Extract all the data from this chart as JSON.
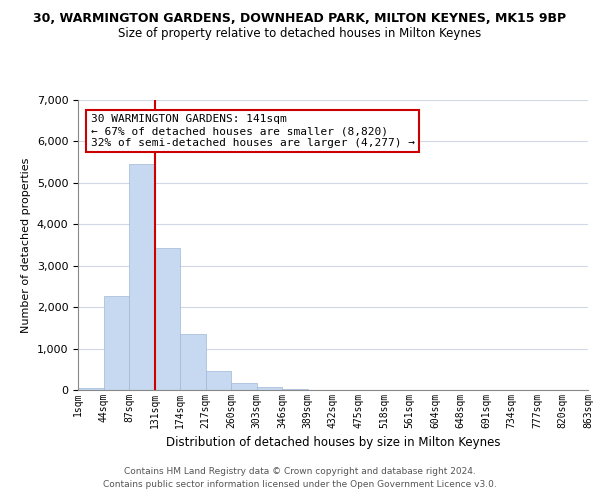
{
  "title": "30, WARMINGTON GARDENS, DOWNHEAD PARK, MILTON KEYNES, MK15 9BP",
  "subtitle": "Size of property relative to detached houses in Milton Keynes",
  "xlabel": "Distribution of detached houses by size in Milton Keynes",
  "ylabel": "Number of detached properties",
  "bar_values": [
    50,
    2270,
    5450,
    3420,
    1350,
    450,
    170,
    80,
    30,
    0,
    0,
    0,
    0,
    0,
    0,
    0,
    0,
    0,
    0,
    0
  ],
  "bar_labels": [
    "1sqm",
    "44sqm",
    "87sqm",
    "131sqm",
    "174sqm",
    "217sqm",
    "260sqm",
    "303sqm",
    "346sqm",
    "389sqm",
    "432sqm",
    "475sqm",
    "518sqm",
    "561sqm",
    "604sqm",
    "648sqm",
    "691sqm",
    "734sqm",
    "777sqm",
    "820sqm",
    "863sqm"
  ],
  "bar_color": "#c6d9f0",
  "bar_edge_color": "#a0b8d8",
  "vline_x": 3,
  "vline_color": "#cc0000",
  "annotation_title": "30 WARMINGTON GARDENS: 141sqm",
  "annotation_line1": "← 67% of detached houses are smaller (8,820)",
  "annotation_line2": "32% of semi-detached houses are larger (4,277) →",
  "annotation_box_color": "#ffffff",
  "annotation_box_edge": "#cc0000",
  "ylim": [
    0,
    7000
  ],
  "yticks": [
    0,
    1000,
    2000,
    3000,
    4000,
    5000,
    6000,
    7000
  ],
  "footnote1": "Contains HM Land Registry data © Crown copyright and database right 2024.",
  "footnote2": "Contains public sector information licensed under the Open Government Licence v3.0.",
  "bg_color": "#ffffff",
  "grid_color": "#d0d8e8"
}
